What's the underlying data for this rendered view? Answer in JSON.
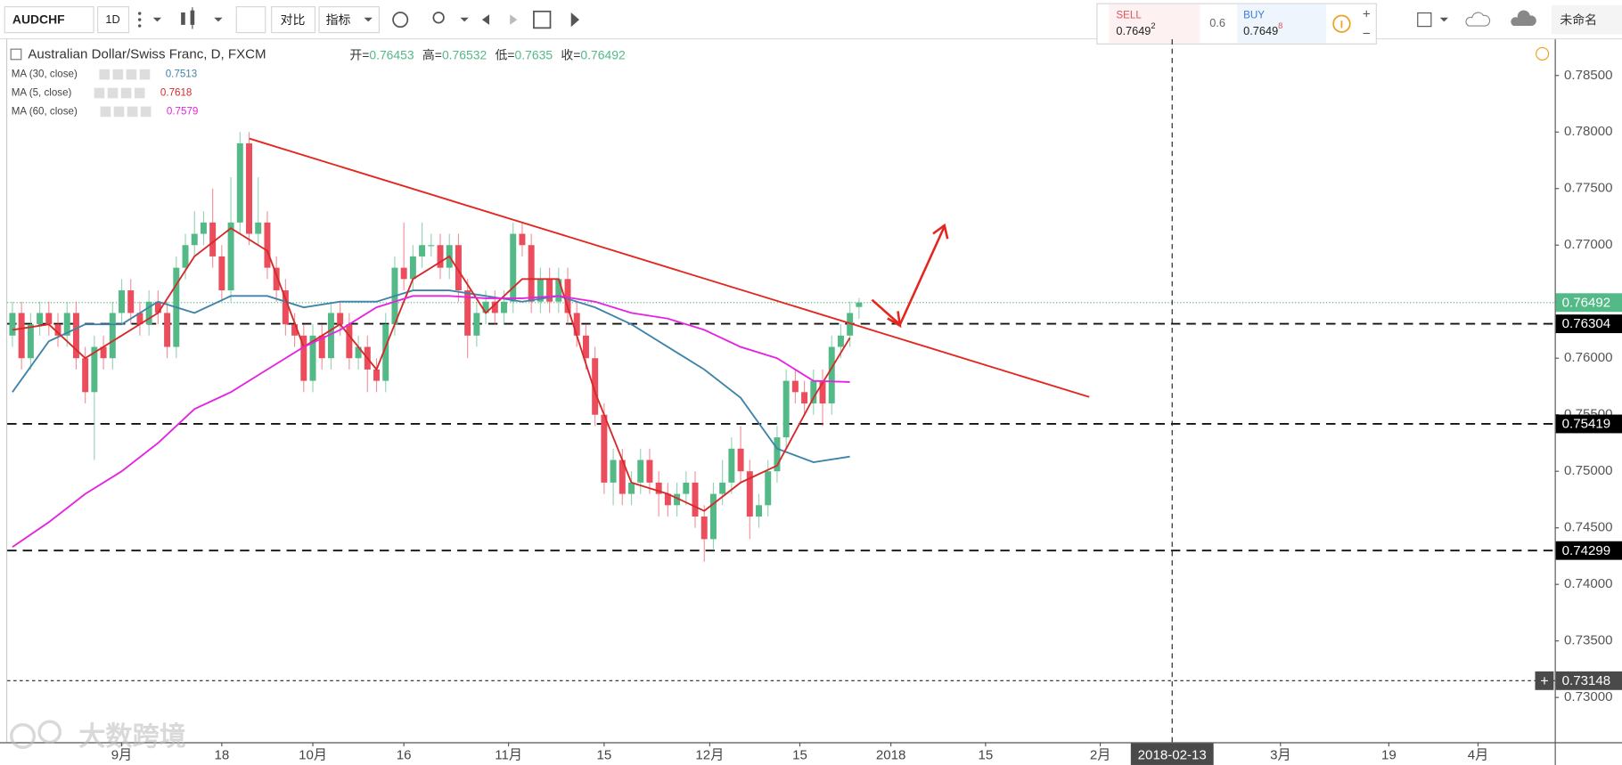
{
  "toolbar": {
    "symbol": "AUDCHF",
    "interval": "1D",
    "compare": "对比",
    "indicators": "指标",
    "layout_name": "未命名"
  },
  "trade_panel": {
    "sell_label": "SELL",
    "sell_price": "0.7649",
    "sell_sup": "2",
    "spread": "0.6",
    "buy_label": "BUY",
    "buy_price": "0.7649",
    "buy_sup": "8"
  },
  "watermark": "大数跨境",
  "chart_data": {
    "type": "candlestick",
    "title": "Australian Dollar/Swiss Franc, D, FXCM",
    "ohlc_legend": [
      {
        "label": "开=",
        "value": 0.76453
      },
      {
        "label": "高=",
        "value": 0.76532
      },
      {
        "label": "低=",
        "value": 0.7635
      },
      {
        "label": "收=",
        "value": 0.76492
      }
    ],
    "up_color": "#53b987",
    "down_color": "#eb4d5c",
    "x": [
      0,
      1,
      2,
      3,
      4,
      5,
      6,
      7,
      8,
      9,
      10,
      11,
      12,
      13,
      14,
      15,
      16,
      17,
      18,
      19,
      20,
      21,
      22,
      23,
      24,
      25,
      26,
      27,
      28,
      29,
      30,
      31,
      32,
      33,
      34,
      35,
      36,
      37,
      38,
      39,
      40,
      41,
      42,
      43,
      44,
      45,
      46,
      47,
      48,
      49,
      50,
      51,
      52,
      53,
      54,
      55,
      56,
      57,
      58,
      59,
      60,
      61,
      62,
      63,
      64,
      65,
      66,
      67,
      68,
      69,
      70,
      71,
      72,
      73,
      74,
      75,
      76,
      77,
      78,
      79,
      80,
      81,
      82,
      83,
      84,
      85,
      86,
      87,
      88,
      89,
      90,
      91,
      92,
      93
    ],
    "open": [
      0.762,
      0.764,
      0.76,
      0.763,
      0.764,
      0.763,
      0.762,
      0.764,
      0.76,
      0.757,
      0.761,
      0.76,
      0.764,
      0.766,
      0.764,
      0.763,
      0.765,
      0.764,
      0.761,
      0.768,
      0.77,
      0.771,
      0.772,
      0.769,
      0.766,
      0.772,
      0.779,
      0.771,
      0.772,
      0.768,
      0.766,
      0.763,
      0.762,
      0.758,
      0.762,
      0.76,
      0.764,
      0.763,
      0.76,
      0.761,
      0.759,
      0.758,
      0.763,
      0.768,
      0.767,
      0.769,
      0.77,
      0.77,
      0.768,
      0.77,
      0.766,
      0.762,
      0.764,
      0.765,
      0.764,
      0.765,
      0.771,
      0.77,
      0.765,
      0.767,
      0.765,
      0.767,
      0.764,
      0.762,
      0.76,
      0.755,
      0.749,
      0.751,
      0.748,
      0.749,
      0.751,
      0.749,
      0.748,
      0.747,
      0.748,
      0.749,
      0.746,
      0.744,
      0.748,
      0.749,
      0.752,
      0.75,
      0.746,
      0.747,
      0.75,
      0.753,
      0.758,
      0.757,
      0.756,
      0.758,
      0.756,
      0.761,
      0.762,
      0.76453
    ],
    "high": [
      0.765,
      0.765,
      0.764,
      0.765,
      0.765,
      0.764,
      0.765,
      0.765,
      0.761,
      0.762,
      0.762,
      0.765,
      0.767,
      0.767,
      0.765,
      0.766,
      0.766,
      0.765,
      0.769,
      0.771,
      0.773,
      0.773,
      0.775,
      0.77,
      0.776,
      0.78,
      0.78,
      0.776,
      0.773,
      0.769,
      0.767,
      0.764,
      0.763,
      0.763,
      0.763,
      0.765,
      0.765,
      0.764,
      0.762,
      0.762,
      0.76,
      0.764,
      0.769,
      0.772,
      0.77,
      0.772,
      0.771,
      0.771,
      0.771,
      0.771,
      0.767,
      0.765,
      0.766,
      0.766,
      0.766,
      0.772,
      0.772,
      0.771,
      0.768,
      0.768,
      0.768,
      0.768,
      0.765,
      0.763,
      0.761,
      0.756,
      0.752,
      0.752,
      0.75,
      0.752,
      0.752,
      0.75,
      0.749,
      0.749,
      0.75,
      0.75,
      0.747,
      0.749,
      0.751,
      0.753,
      0.754,
      0.751,
      0.748,
      0.751,
      0.754,
      0.759,
      0.759,
      0.758,
      0.759,
      0.759,
      0.762,
      0.763,
      0.765,
      0.76532
    ],
    "low": [
      0.761,
      0.759,
      0.759,
      0.762,
      0.762,
      0.761,
      0.761,
      0.759,
      0.756,
      0.751,
      0.759,
      0.759,
      0.763,
      0.763,
      0.762,
      0.762,
      0.763,
      0.76,
      0.76,
      0.767,
      0.769,
      0.77,
      0.768,
      0.765,
      0.765,
      0.771,
      0.77,
      0.77,
      0.767,
      0.765,
      0.762,
      0.761,
      0.757,
      0.757,
      0.759,
      0.759,
      0.762,
      0.759,
      0.759,
      0.757,
      0.757,
      0.757,
      0.762,
      0.766,
      0.766,
      0.768,
      0.769,
      0.767,
      0.767,
      0.765,
      0.76,
      0.761,
      0.763,
      0.763,
      0.763,
      0.764,
      0.769,
      0.764,
      0.764,
      0.764,
      0.764,
      0.763,
      0.761,
      0.759,
      0.754,
      0.748,
      0.747,
      0.747,
      0.747,
      0.748,
      0.748,
      0.746,
      0.746,
      0.746,
      0.747,
      0.745,
      0.742,
      0.743,
      0.747,
      0.748,
      0.749,
      0.744,
      0.745,
      0.746,
      0.749,
      0.752,
      0.756,
      0.755,
      0.755,
      0.754,
      0.755,
      0.76,
      0.761,
      0.7635
    ],
    "close": [
      0.764,
      0.76,
      0.763,
      0.764,
      0.763,
      0.762,
      0.764,
      0.76,
      0.757,
      0.761,
      0.76,
      0.764,
      0.766,
      0.764,
      0.763,
      0.765,
      0.764,
      0.761,
      0.768,
      0.77,
      0.771,
      0.772,
      0.769,
      0.766,
      0.772,
      0.779,
      0.771,
      0.772,
      0.768,
      0.766,
      0.763,
      0.762,
      0.758,
      0.762,
      0.76,
      0.764,
      0.763,
      0.76,
      0.761,
      0.759,
      0.758,
      0.763,
      0.768,
      0.767,
      0.769,
      0.77,
      0.77,
      0.768,
      0.77,
      0.766,
      0.762,
      0.764,
      0.765,
      0.764,
      0.765,
      0.771,
      0.77,
      0.765,
      0.767,
      0.765,
      0.767,
      0.764,
      0.762,
      0.76,
      0.755,
      0.749,
      0.751,
      0.748,
      0.749,
      0.751,
      0.749,
      0.748,
      0.747,
      0.748,
      0.749,
      0.746,
      0.744,
      0.748,
      0.749,
      0.752,
      0.75,
      0.746,
      0.747,
      0.75,
      0.753,
      0.758,
      0.757,
      0.756,
      0.758,
      0.756,
      0.761,
      0.762,
      0.764,
      0.76492
    ],
    "series": [
      {
        "name": "MA (30, close)",
        "color": "#3f84a8",
        "last": 0.7513,
        "x": [
          0,
          4,
          8,
          12,
          16,
          20,
          24,
          28,
          32,
          36,
          40,
          44,
          48,
          52,
          56,
          60,
          64,
          68,
          72,
          76,
          80,
          84,
          88,
          92
        ],
        "values": [
          0.757,
          0.7615,
          0.763,
          0.763,
          0.765,
          0.764,
          0.7655,
          0.7655,
          0.7645,
          0.765,
          0.765,
          0.766,
          0.766,
          0.7655,
          0.765,
          0.7655,
          0.7645,
          0.763,
          0.761,
          0.759,
          0.7565,
          0.752,
          0.7508,
          0.7513
        ]
      },
      {
        "name": "MA (5, close)",
        "color": "#d42a2a",
        "last": 0.7618,
        "x": [
          0,
          4,
          8,
          12,
          16,
          20,
          24,
          28,
          32,
          36,
          40,
          44,
          48,
          52,
          56,
          60,
          64,
          68,
          72,
          76,
          80,
          84,
          88,
          92
        ],
        "values": [
          0.7625,
          0.763,
          0.76,
          0.762,
          0.764,
          0.769,
          0.7715,
          0.7695,
          0.761,
          0.763,
          0.759,
          0.767,
          0.769,
          0.764,
          0.767,
          0.767,
          0.757,
          0.749,
          0.748,
          0.7465,
          0.749,
          0.7505,
          0.7565,
          0.7618
        ]
      },
      {
        "name": "MA (60, close)",
        "color": "#e325e0",
        "last": 0.7579,
        "x": [
          0,
          4,
          8,
          12,
          16,
          20,
          24,
          28,
          32,
          36,
          40,
          44,
          48,
          52,
          56,
          60,
          64,
          68,
          72,
          76,
          80,
          84,
          88,
          92
        ],
        "values": [
          0.7433,
          0.7455,
          0.748,
          0.75,
          0.7525,
          0.7555,
          0.757,
          0.759,
          0.761,
          0.7625,
          0.7645,
          0.7655,
          0.7655,
          0.7653,
          0.7653,
          0.7655,
          0.765,
          0.764,
          0.7635,
          0.7625,
          0.761,
          0.76,
          0.758,
          0.7579
        ]
      }
    ],
    "last_price": 0.76492,
    "levels": [
      0.76304,
      0.75419,
      0.74299
    ],
    "crosshair": {
      "x": 127.4,
      "x_label": "2018-02-13",
      "y": 0.73148
    },
    "xlim": [
      -0.57,
      169.43
    ],
    "xticks": [
      {
        "value": 12,
        "label": "9月"
      },
      {
        "value": 23,
        "label": "18"
      },
      {
        "value": 33,
        "label": "10月"
      },
      {
        "value": 43,
        "label": "16"
      },
      {
        "value": 54.5,
        "label": "11月"
      },
      {
        "value": 65,
        "label": "15"
      },
      {
        "value": 76.6,
        "label": "12月"
      },
      {
        "value": 86.5,
        "label": "15"
      },
      {
        "value": 96.5,
        "label": "2018"
      },
      {
        "value": 106.9,
        "label": "15"
      },
      {
        "value": 119.5,
        "label": "2月"
      },
      {
        "value": 139.3,
        "label": "3月"
      },
      {
        "value": 151.2,
        "label": "19"
      },
      {
        "value": 161,
        "label": "4月"
      }
    ],
    "ylim": [
      0.72604,
      0.7882
    ],
    "yticks": [
      {
        "value": 0.785,
        "label": "0.78500"
      },
      {
        "value": 0.78,
        "label": "0.78000"
      },
      {
        "value": 0.775,
        "label": "0.77500"
      },
      {
        "value": 0.77,
        "label": "0.77000"
      },
      {
        "value": 0.765,
        "label": "0.76500"
      },
      {
        "value": 0.76,
        "label": "0.76000"
      },
      {
        "value": 0.755,
        "label": "0.75500"
      },
      {
        "value": 0.75,
        "label": "0.75000"
      },
      {
        "value": 0.745,
        "label": "0.74500"
      },
      {
        "value": 0.74,
        "label": "0.74000"
      },
      {
        "value": 0.735,
        "label": "0.73500"
      },
      {
        "value": 0.73,
        "label": "0.73000"
      }
    ],
    "grid": false
  }
}
